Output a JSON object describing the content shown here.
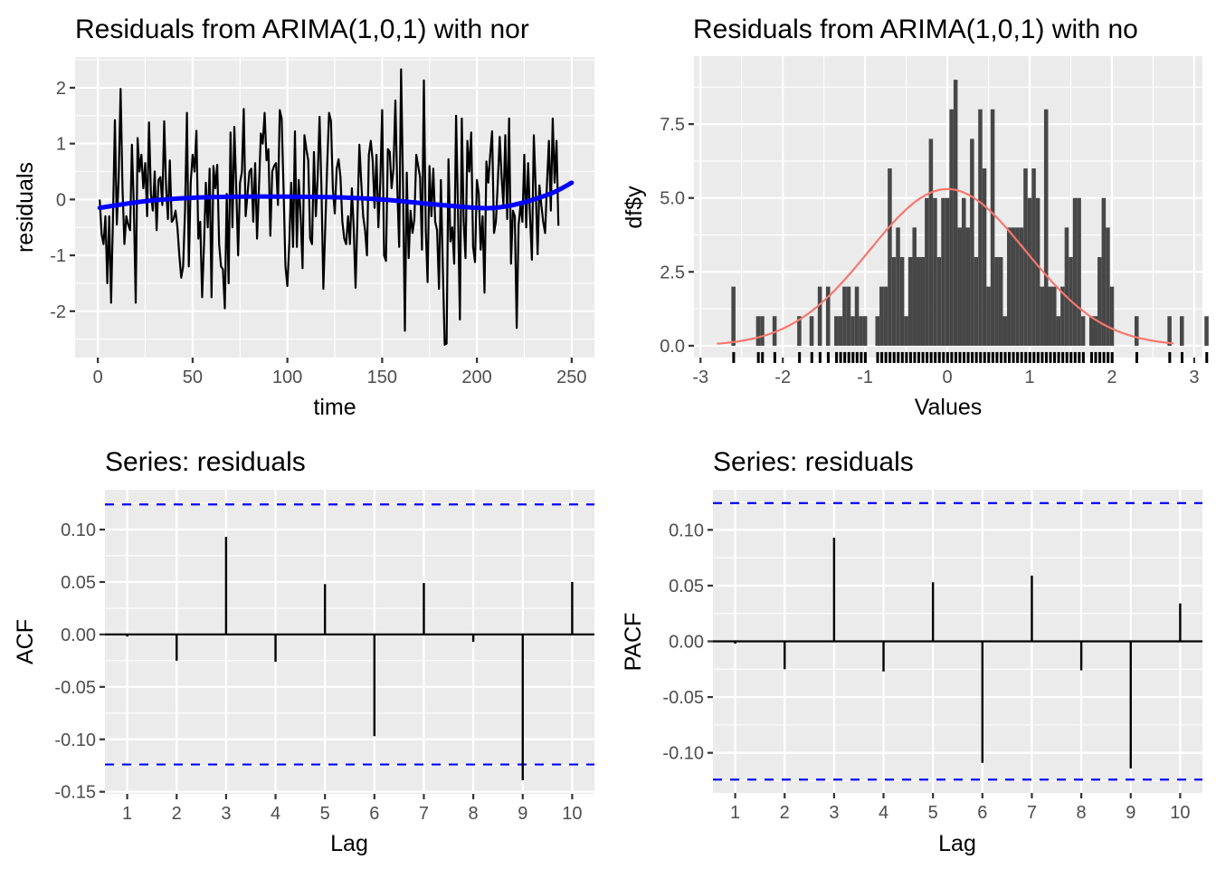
{
  "chart_data": [
    {
      "id": "residuals_time",
      "type": "line",
      "title": "Residuals from ARIMA(1,0,1) with nor",
      "xlabel": "time",
      "ylabel": "residuals",
      "xlim": [
        -12,
        262
      ],
      "ylim": [
        -2.83,
        2.55
      ],
      "xticks": [
        0,
        50,
        100,
        150,
        200,
        250
      ],
      "xtick_labels": [
        "0",
        "50",
        "100",
        "150",
        "200",
        "250"
      ],
      "yticks": [
        -2,
        -1,
        0,
        1,
        2
      ],
      "ytick_labels": [
        "-2",
        "-1",
        "0",
        "1",
        "2"
      ],
      "grid": true,
      "series": [
        {
          "name": "residuals",
          "color": "#000000",
          "x_start": 1,
          "values": [
            0.0,
            -0.62,
            -0.8,
            -0.3,
            -1.5,
            -0.3,
            -1.85,
            -0.3,
            1.42,
            -0.45,
            0.4,
            1.98,
            0.2,
            -0.8,
            -0.3,
            -0.45,
            -0.55,
            0.98,
            -0.1,
            -1.85,
            1.1,
            0.5,
            0.8,
            0.2,
            0.65,
            -0.3,
            1.38,
            0.1,
            -0.2,
            0.5,
            -0.55,
            0.35,
            0.4,
            -0.1,
            1.4,
            0.2,
            -0.35,
            0.7,
            -0.4,
            -0.35,
            -0.2,
            -0.5,
            -1.0,
            -1.4,
            -1.2,
            -0.2,
            1.55,
            -1.2,
            0.3,
            0.8,
            0.5,
            1.23,
            -0.7,
            -0.4,
            -1.75,
            -0.8,
            0.3,
            -0.5,
            0.55,
            -1.75,
            0.6,
            0.2,
            0.62,
            -0.8,
            -1.2,
            -1.25,
            -1.95,
            0.1,
            -1.5,
            1.2,
            -0.5,
            1.3,
            0.2,
            -1.0,
            0.3,
            0.5,
            1.62,
            -0.3,
            0.1,
            0.5,
            0.55,
            -0.4,
            0.65,
            -0.7,
            0.2,
            1.18,
            1.0,
            1.55,
            0.7,
            0.9,
            -0.65,
            0.5,
            0.6,
            0.65,
            -0.1,
            1.6,
            1.45,
            0.2,
            -1.2,
            -1.55,
            -0.8,
            0.3,
            -0.85,
            1.22,
            -0.85,
            0.35,
            -0.3,
            -1.23,
            1.15,
            0.9,
            0.7,
            -0.7,
            -0.8,
            0.85,
            -0.3,
            0.4,
            1.48,
            0.2,
            -1.6,
            -0.5,
            0.6,
            1.55,
            1.4,
            0.2,
            -0.25,
            0.55,
            0.72,
            0.4,
            -0.4,
            -0.7,
            -0.8,
            -0.3,
            -0.8,
            0.2,
            -0.5,
            -1.58,
            -0.3,
            0.98,
            0.3,
            -0.3,
            -0.55,
            -1.0,
            0.8,
            1.05,
            0.7,
            -0.15,
            0.8,
            -0.5,
            0.3,
            1.6,
            -1.0,
            -1.1,
            0.9,
            0.85,
            0.2,
            0.55,
            1.77,
            0.2,
            -0.85,
            2.33,
            0.3,
            -2.35,
            0.48,
            -1.05,
            -0.2,
            -0.6,
            -0.35,
            0.8,
            0.6,
            0.4,
            -0.9,
            2.13,
            -0.55,
            -1.48,
            0.6,
            -0.3,
            0.55,
            -0.4,
            -0.55,
            -1.6,
            0.35,
            -1.2,
            -2.6,
            -2.58,
            0.72,
            -0.75,
            -0.5,
            -1.15,
            1.5,
            -0.2,
            -2.15,
            1.45,
            -0.4,
            -1.05,
            1.05,
            0.5,
            1.2,
            -0.85,
            -1.12,
            0.35,
            0.1,
            -0.9,
            -0.3,
            -1.67,
            0.68,
            0.3,
            0.8,
            1.22,
            -0.6,
            -0.4,
            0.3,
            1.12,
            0.4,
            -0.1,
            1.15,
            -0.35,
            1.45,
            -1.15,
            -0.2,
            -0.3,
            -2.3,
            -0.45,
            -0.1,
            -0.4,
            0.8,
            -0.5,
            0.65,
            -0.3,
            -1.08,
            1.15,
            0.2,
            -0.98,
            0.25,
            -0.1,
            -0.4,
            -0.6,
            0.3,
            1.05,
            -0.2,
            1.45,
            0.3,
            1.05,
            -0.47
          ]
        },
        {
          "name": "smooth",
          "color": "#0000ff",
          "x": [
            1,
            25,
            50,
            75,
            100,
            125,
            150,
            175,
            200,
            212,
            225,
            240,
            250
          ],
          "values": [
            -0.15,
            -0.03,
            0.03,
            0.05,
            0.05,
            0.04,
            0.0,
            -0.08,
            -0.15,
            -0.14,
            -0.05,
            0.12,
            0.3
          ]
        }
      ]
    },
    {
      "id": "residuals_histogram",
      "type": "bar",
      "title": "Residuals from ARIMA(1,0,1) with no",
      "xlabel": "Values",
      "ylabel": "df$y",
      "xlim": [
        -3.08,
        3.1
      ],
      "ylim": [
        -0.4,
        9.8
      ],
      "xticks": [
        -3,
        -2,
        -1,
        0,
        1,
        2,
        3
      ],
      "xtick_labels": [
        "-3",
        "-2",
        "-1",
        "0",
        "1",
        "2",
        "3"
      ],
      "yticks": [
        0.0,
        2.5,
        5.0,
        7.5
      ],
      "ytick_labels": [
        "0.0",
        "2.5",
        "5.0",
        "7.5"
      ],
      "grid": true,
      "bin_width": 0.05,
      "bin_start": -2.625,
      "values": [
        2,
        0,
        0,
        0,
        0,
        0,
        1,
        1,
        0,
        0,
        1,
        0,
        0,
        0,
        0,
        0,
        1,
        0,
        0,
        1,
        0,
        2,
        0,
        2,
        0,
        1,
        1,
        2,
        2,
        1,
        2,
        1,
        1,
        0,
        0,
        1,
        2,
        2,
        6,
        3,
        4,
        3,
        1,
        3,
        4,
        3,
        3,
        5,
        7,
        5,
        3,
        5,
        5,
        8,
        9,
        4,
        5,
        4,
        7,
        3,
        8,
        6,
        2,
        8,
        3,
        3,
        1,
        4,
        4,
        4,
        4,
        6,
        5,
        6,
        5,
        2,
        8,
        2,
        2,
        1,
        2,
        4,
        3,
        5,
        5,
        1,
        0,
        1,
        1,
        3,
        5,
        4,
        2,
        0,
        0,
        0,
        0,
        0,
        1,
        0,
        0,
        0,
        0,
        0,
        0,
        0,
        1,
        0,
        0,
        1,
        0,
        0,
        0,
        0,
        0,
        1
      ],
      "rug": true,
      "normal_curve": {
        "color": "#f8766d",
        "mean": 0.0,
        "peak": 5.3,
        "sd": 0.95,
        "x_range": [
          -2.8,
          2.75
        ]
      },
      "bar_color": "#474747"
    },
    {
      "id": "acf",
      "type": "bar",
      "title": "Series: residuals",
      "xlabel": "Lag",
      "ylabel": "ACF",
      "categories": [
        "1",
        "2",
        "3",
        "4",
        "5",
        "6",
        "7",
        "8",
        "9",
        "10"
      ],
      "values": [
        -0.002,
        -0.025,
        0.093,
        -0.026,
        0.048,
        -0.097,
        0.049,
        -0.007,
        -0.139,
        0.05
      ],
      "ci": 0.124,
      "ylim": [
        -0.152,
        0.138
      ],
      "yticks": [
        -0.15,
        -0.1,
        -0.05,
        0.0,
        0.05,
        0.1
      ],
      "ytick_labels": [
        "-0.15",
        "-0.10",
        "-0.05",
        "0.00",
        "0.05",
        "0.10"
      ],
      "ci_color": "#0000ff",
      "grid": true
    },
    {
      "id": "pacf",
      "type": "bar",
      "title": "Series: residuals",
      "xlabel": "Lag",
      "ylabel": "PACF",
      "categories": [
        "1",
        "2",
        "3",
        "4",
        "5",
        "6",
        "7",
        "8",
        "9",
        "10"
      ],
      "values": [
        -0.002,
        -0.025,
        0.093,
        -0.027,
        0.053,
        -0.109,
        0.059,
        -0.026,
        -0.114,
        0.034
      ],
      "ci": 0.124,
      "ylim": [
        -0.136,
        0.136
      ],
      "yticks": [
        -0.1,
        -0.05,
        0.0,
        0.05,
        0.1
      ],
      "ytick_labels": [
        "-0.10",
        "-0.05",
        "0.00",
        "0.05",
        "0.10"
      ],
      "ci_color": "#0000ff",
      "grid": true
    }
  ]
}
